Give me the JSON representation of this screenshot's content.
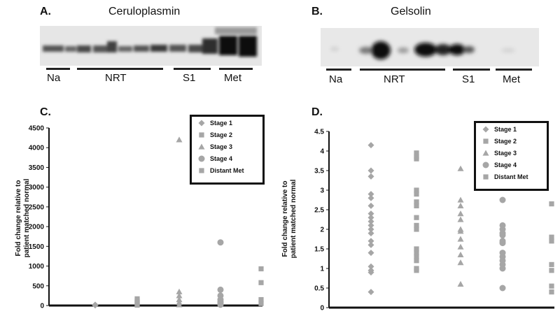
{
  "panels": {
    "a": {
      "letter": "A.",
      "title": "Ceruloplasmin",
      "lanes": [
        {
          "label": "Na"
        },
        {
          "label": "NRT"
        },
        {
          "label": "S1"
        },
        {
          "label": "Met"
        }
      ]
    },
    "b": {
      "letter": "B.",
      "title": "Gelsolin",
      "lanes": [
        {
          "label": "Na"
        },
        {
          "label": "NRT"
        },
        {
          "label": "S1"
        },
        {
          "label": "Met"
        }
      ]
    },
    "c": {
      "letter": "C.",
      "ylabel_line1": "Fold change relative to",
      "ylabel_line2": "patient matched normal"
    },
    "d": {
      "letter": "D.",
      "ylabel_line1": "Fold change relative to",
      "ylabel_line2": "patient matched normal"
    }
  },
  "legend": [
    "Stage 1",
    "Stage 2",
    "Stage 3",
    "Stage 4",
    "Distant Met"
  ],
  "colors": {
    "marker": "#a6a6a6",
    "axis": "#111111"
  },
  "chart_data": [
    {
      "type": "scatter",
      "title": "",
      "ylim": [
        0,
        4500
      ],
      "yticks": [
        0,
        500,
        1000,
        1500,
        2000,
        2500,
        3000,
        3500,
        4000,
        4500
      ],
      "grid": false,
      "legend_position": "top-right",
      "series": [
        {
          "name": "Stage 1",
          "marker": "diamond",
          "group": 1,
          "values": [
            5,
            10,
            20
          ]
        },
        {
          "name": "Stage 2",
          "marker": "square",
          "group": 2,
          "values": [
            10,
            40,
            80,
            120,
            170
          ]
        },
        {
          "name": "Stage 3",
          "marker": "triangle",
          "group": 3,
          "values": [
            20,
            80,
            150,
            250,
            350,
            4200
          ]
        },
        {
          "name": "Stage 4",
          "marker": "circle",
          "group": 4,
          "values": [
            20,
            60,
            100,
            150,
            250,
            400,
            1600
          ]
        },
        {
          "name": "Distant Met",
          "marker": "square",
          "group": 5,
          "values": [
            50,
            150,
            580,
            930
          ]
        }
      ]
    },
    {
      "type": "scatter",
      "title": "",
      "ylim": [
        0,
        4.5
      ],
      "yticks": [
        0,
        0.5,
        1,
        1.5,
        2,
        2.5,
        3,
        3.5,
        4,
        4.5
      ],
      "grid": false,
      "legend_position": "top-right",
      "series": [
        {
          "name": "Stage 1",
          "marker": "diamond",
          "group": 1,
          "values": [
            4.15,
            3.5,
            3.35,
            2.9,
            2.8,
            2.6,
            2.4,
            2.3,
            2.2,
            2.1,
            2.0,
            1.9,
            1.7,
            1.6,
            1.4,
            1.05,
            0.95,
            0.9,
            0.4
          ]
        },
        {
          "name": "Stage 2",
          "marker": "square",
          "group": 2,
          "values": [
            3.95,
            3.85,
            3.8,
            3.0,
            2.9,
            2.7,
            2.6,
            2.3,
            2.1,
            2.0,
            1.5,
            1.4,
            1.3,
            1.2,
            1.0,
            0.95
          ]
        },
        {
          "name": "Stage 3",
          "marker": "triangle",
          "group": 3,
          "values": [
            3.55,
            2.75,
            2.6,
            2.4,
            2.25,
            2.0,
            1.95,
            1.75,
            1.55,
            1.35,
            1.15,
            0.6
          ]
        },
        {
          "name": "Stage 4",
          "marker": "circle",
          "group": 4,
          "values": [
            2.75,
            2.1,
            2.0,
            1.9,
            1.85,
            1.7,
            1.65,
            1.4,
            1.3,
            1.2,
            1.1,
            1.0,
            0.5
          ]
        },
        {
          "name": "Distant Met",
          "marker": "square",
          "group": 5,
          "values": [
            2.65,
            1.8,
            1.7,
            1.1,
            0.95,
            0.55,
            0.4
          ]
        }
      ]
    }
  ]
}
